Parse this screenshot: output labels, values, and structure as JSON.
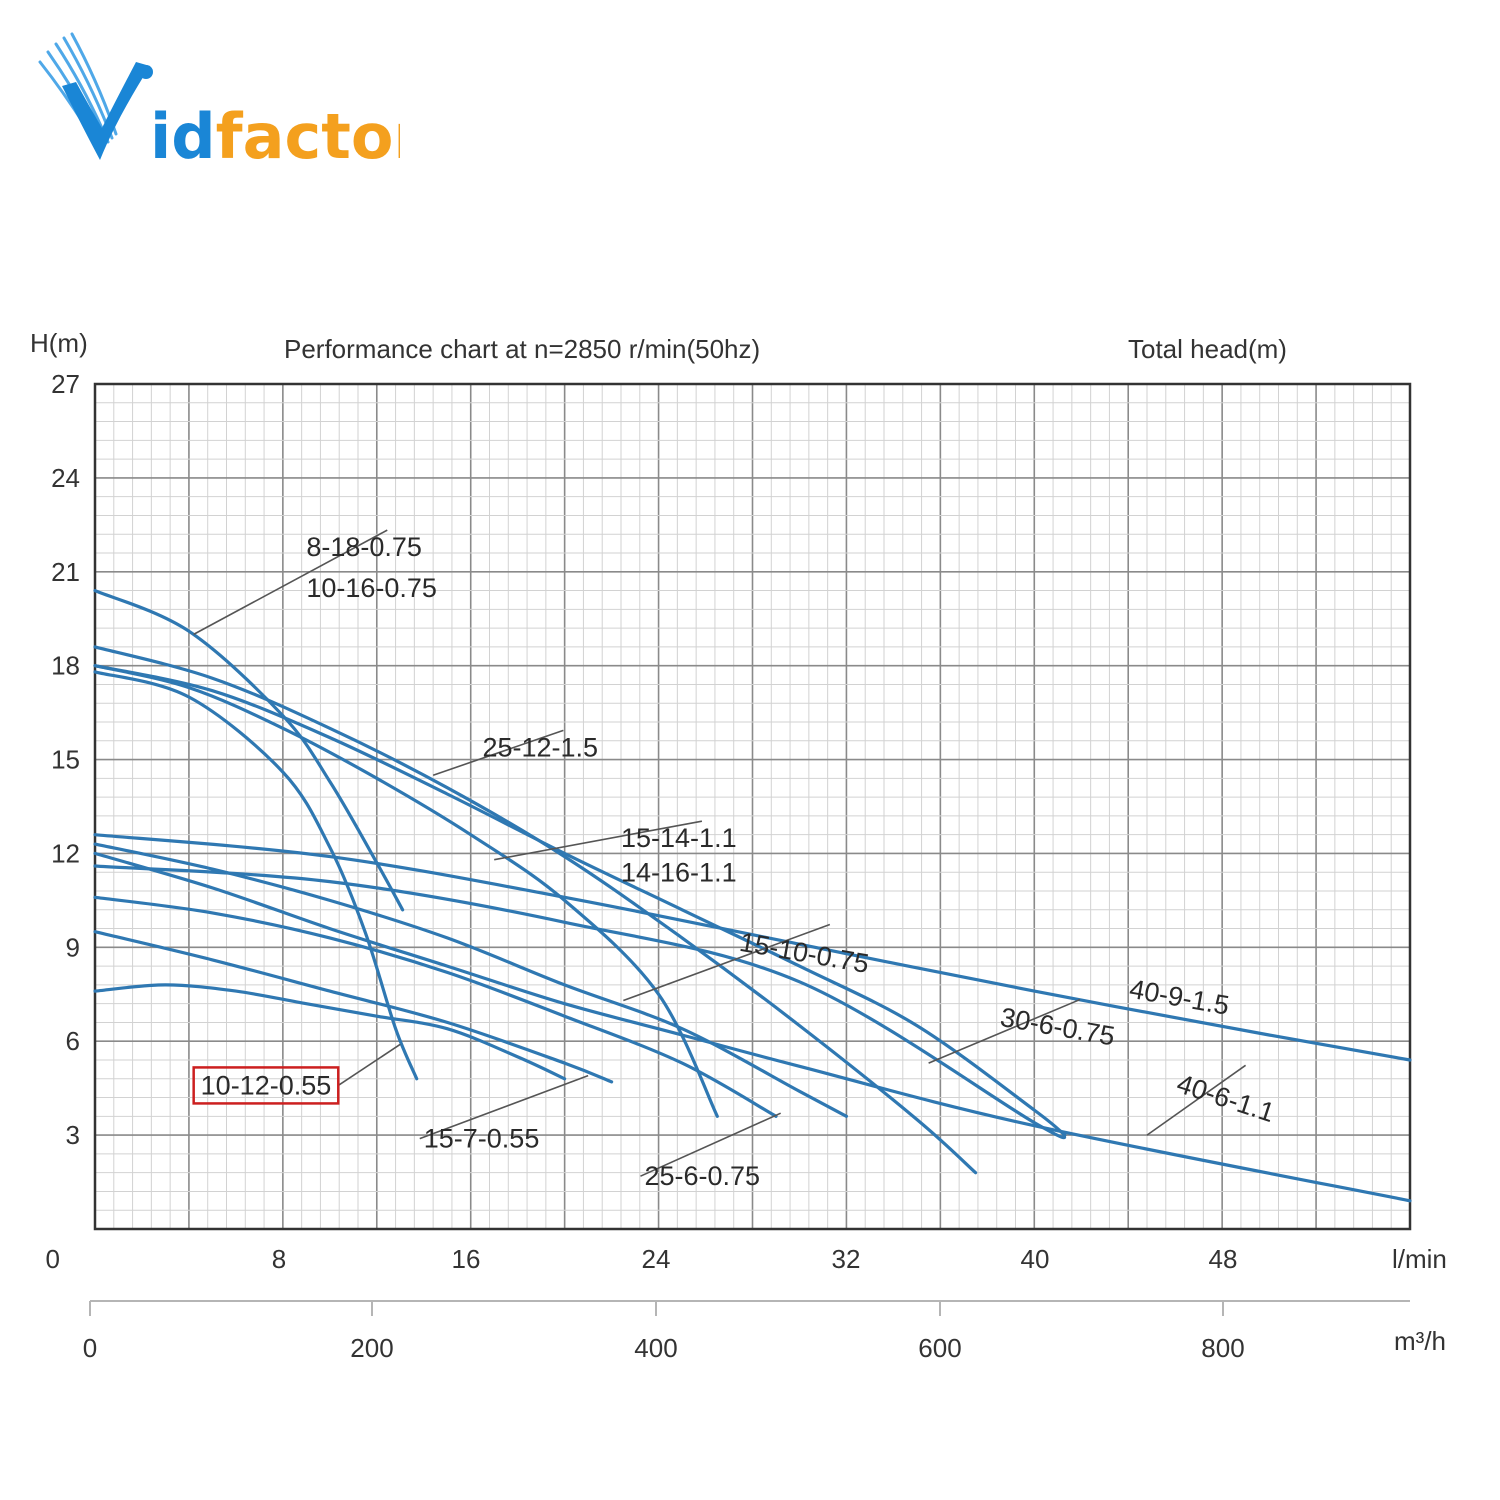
{
  "brand": {
    "name": "Vidfactor",
    "colors": {
      "blue": "#1a86d6",
      "orange": "#f4a01e"
    }
  },
  "chart_data": {
    "type": "line",
    "title": "Performance chart at n=2850 r/min(50hz)",
    "ylabel": "H(m)",
    "ylabel_right": "Total head(m)",
    "xlabel_top": "l/min",
    "xlabel_bottom": "m³/h",
    "xlim": [
      0,
      56
    ],
    "ylim": [
      0,
      27
    ],
    "y_ticks": [
      "0",
      "3",
      "6",
      "9",
      "12",
      "15",
      "18",
      "21",
      "24",
      "27"
    ],
    "x_ticks_lmin": [
      "8",
      "16",
      "24",
      "32",
      "40",
      "48"
    ],
    "x_ticks_m3h": [
      "0",
      "200",
      "400",
      "600",
      "800"
    ],
    "grid": true,
    "line_color": "#2f78b2",
    "highlight_color": "#cc1f1f",
    "series": [
      {
        "name": "8-18-0.75",
        "x": [
          0,
          4,
          8,
          10,
          12,
          13.1
        ],
        "y": [
          20.4,
          19.1,
          16.4,
          14.3,
          11.7,
          10.2
        ]
      },
      {
        "name": "10-16-0.75",
        "x": [
          0,
          4,
          8,
          12,
          16,
          20,
          24,
          26.5
        ],
        "y": [
          18.0,
          17.3,
          16.0,
          14.4,
          12.6,
          10.5,
          7.5,
          3.6
        ]
      },
      {
        "name": "25-12-1.5",
        "x": [
          0,
          5,
          10,
          15,
          20,
          25,
          30,
          35,
          37.5
        ],
        "y": [
          18.6,
          17.6,
          16.0,
          14.1,
          11.9,
          9.3,
          6.5,
          3.5,
          1.8
        ]
      },
      {
        "name": "15-14-1.1",
        "x": [
          0,
          4,
          8,
          10,
          11.5,
          12.8,
          13.7
        ],
        "y": [
          17.8,
          17.0,
          14.6,
          12.2,
          9.5,
          6.4,
          4.8
        ]
      },
      {
        "name": "14-16-1.1",
        "x": [
          0,
          5,
          10,
          15,
          20,
          25,
          30,
          35,
          40,
          41.3
        ],
        "y": [
          18.0,
          17.2,
          15.7,
          13.9,
          12.0,
          10.2,
          8.4,
          6.5,
          3.8,
          3.0
        ]
      },
      {
        "name": "15-10-0.75",
        "x": [
          0,
          5,
          10,
          15,
          20,
          25,
          30,
          32
        ],
        "y": [
          12.3,
          11.5,
          10.5,
          9.3,
          7.8,
          6.4,
          4.4,
          3.6
        ]
      },
      {
        "name": "40-9-1.5",
        "x": [
          0,
          10,
          20,
          30,
          40,
          50,
          56
        ],
        "y": [
          12.6,
          11.9,
          10.6,
          9.1,
          7.6,
          6.2,
          5.4
        ]
      },
      {
        "name": "30-6-0.75",
        "x": [
          0,
          10,
          20,
          30,
          40,
          41.3
        ],
        "y": [
          11.6,
          11.1,
          9.8,
          7.9,
          3.4,
          3.0
        ]
      },
      {
        "name": "40-6-1.1",
        "x": [
          0,
          5,
          10,
          15,
          20,
          25,
          30,
          40,
          56
        ],
        "y": [
          12.0,
          10.9,
          9.6,
          8.4,
          7.2,
          6.2,
          5.2,
          3.3,
          0.9
        ]
      },
      {
        "name": "25-6-0.75",
        "x": [
          0,
          5,
          10,
          15,
          20,
          25,
          29
        ],
        "y": [
          10.6,
          10.1,
          9.3,
          8.2,
          6.8,
          5.3,
          3.6
        ]
      },
      {
        "name": "15-7-0.55",
        "x": [
          0,
          5,
          10,
          15,
          20,
          22
        ],
        "y": [
          9.5,
          8.6,
          7.6,
          6.6,
          5.3,
          4.7
        ]
      },
      {
        "name": "10-12-0.55",
        "x": [
          0,
          3,
          6,
          9,
          12,
          15,
          18,
          20
        ],
        "y": [
          7.6,
          7.8,
          7.6,
          7.2,
          6.8,
          6.4,
          5.5,
          4.8
        ]
      }
    ],
    "labels": [
      {
        "text": "8-18-0.75",
        "anchor": [
          4.2,
          19.0
        ],
        "at": [
          9,
          21.5
        ]
      },
      {
        "text": "10-16-0.75",
        "anchor": null,
        "at": [
          9,
          20.2
        ]
      },
      {
        "text": "25-12-1.5",
        "anchor": [
          14.4,
          14.5
        ],
        "at": [
          16.5,
          15.1
        ]
      },
      {
        "text": "15-14-1.1",
        "anchor": [
          17,
          11.8
        ],
        "at": [
          22.4,
          12.2
        ]
      },
      {
        "text": "14-16-1.1",
        "anchor": null,
        "at": [
          22.4,
          11.1
        ]
      },
      {
        "text": "15-10-0.75",
        "anchor": [
          22.5,
          7.3
        ],
        "at": [
          27.4,
          8.9
        ]
      },
      {
        "text": "30-6-0.75",
        "anchor": [
          35.5,
          5.3
        ],
        "at": [
          38.5,
          6.5
        ]
      },
      {
        "text": "40-9-1.5",
        "anchor": null,
        "at": [
          44,
          7.4
        ]
      },
      {
        "text": "40-6-1.1",
        "anchor": [
          44.8,
          3.0
        ],
        "at": [
          46,
          4.4
        ]
      },
      {
        "text": "25-6-0.75",
        "anchor": [
          29.2,
          3.7
        ],
        "at": [
          23.4,
          1.4
        ]
      },
      {
        "text": "15-7-0.55",
        "anchor": [
          21,
          4.9
        ],
        "at": [
          14,
          2.6
        ]
      },
      {
        "text": "10-12-0.55",
        "anchor": [
          13,
          5.9
        ],
        "at": [
          4.5,
          4.3
        ],
        "boxed": true
      }
    ]
  }
}
